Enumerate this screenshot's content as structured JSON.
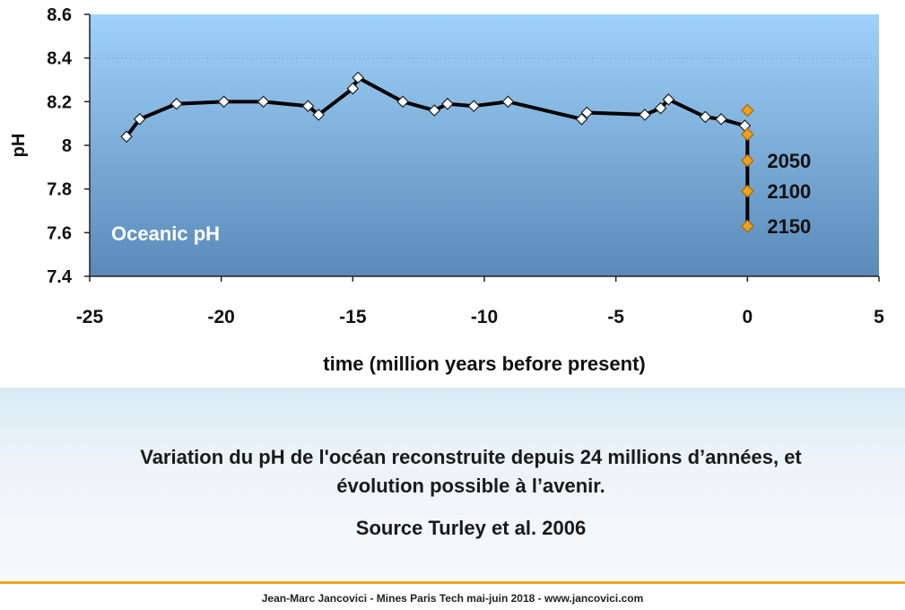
{
  "chart_data": {
    "type": "line",
    "xlabel": "time (million years before present)",
    "ylabel": "pH",
    "xlim": [
      -25,
      5
    ],
    "ylim": [
      7.4,
      8.6
    ],
    "x_ticks": [
      "-25",
      "-20",
      "-15",
      "-10",
      "-5",
      "0",
      "5"
    ],
    "y_ticks": [
      "7.4",
      "7.6",
      "7.8",
      "8",
      "8.2",
      "8.4",
      "8.6"
    ],
    "grid": "horizontal dotted at 8.4",
    "annotation": "Oceanic pH",
    "series": [
      {
        "marker": "white-diamond",
        "color": "#000000",
        "points": [
          [
            -23.6,
            8.04
          ],
          [
            -23.1,
            8.12
          ],
          [
            -21.7,
            8.19
          ],
          [
            -19.9,
            8.2
          ],
          [
            -18.4,
            8.2
          ],
          [
            -16.7,
            8.18
          ],
          [
            -16.3,
            8.14
          ],
          [
            -15.0,
            8.26
          ],
          [
            -14.8,
            8.31
          ],
          [
            -13.1,
            8.2
          ],
          [
            -11.9,
            8.16
          ],
          [
            -11.4,
            8.19
          ],
          [
            -10.4,
            8.18
          ],
          [
            -9.1,
            8.2
          ],
          [
            -6.3,
            8.12
          ],
          [
            -6.1,
            8.15
          ],
          [
            -3.9,
            8.14
          ],
          [
            -3.3,
            8.17
          ],
          [
            -3.0,
            8.21
          ],
          [
            -1.6,
            8.13
          ],
          [
            -1.0,
            8.12
          ],
          [
            -0.1,
            8.09
          ]
        ]
      },
      {
        "marker": "orange-diamond",
        "color": "#f0a020",
        "points": [
          [
            0.0,
            8.16
          ],
          [
            0.0,
            8.05
          ],
          [
            0.0,
            7.93
          ],
          [
            0.0,
            7.79
          ],
          [
            0.0,
            7.63
          ]
        ],
        "labels": [
          "",
          "",
          "2050",
          "2100",
          "2150"
        ]
      }
    ]
  },
  "caption": {
    "line1": "Variation du pH de l'océan reconstruite depuis 24 millions d’années, et",
    "line2": "évolution possible à l’avenir.",
    "source": "Source Turley et al. 2006"
  },
  "footer": "Jean-Marc Jancovici - Mines Paris Tech mai-juin 2018 - www.jancovici.com",
  "colors": {
    "plot_top": "#9fd2fa",
    "plot_bottom": "#5a8ab8",
    "line": "#000000",
    "future_marker": "#f0a020",
    "accent_rule": "#f0a030"
  }
}
